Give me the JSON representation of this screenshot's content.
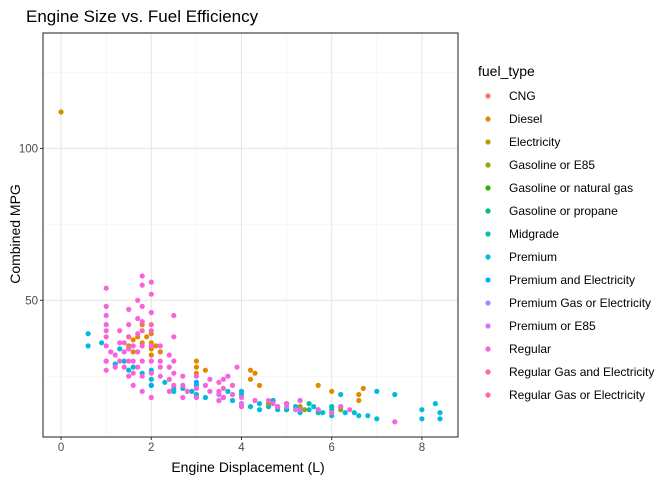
{
  "chart_data": {
    "type": "scatter",
    "title": "Engine Size vs. Fuel Efficiency",
    "xlabel": "Engine Displacement (L)",
    "ylabel": "Combined MPG",
    "xlim": [
      -0.4,
      8.8
    ],
    "ylim": [
      5,
      138
    ],
    "x_ticks": [
      0,
      2,
      4,
      6,
      8
    ],
    "y_ticks": [
      50,
      100
    ],
    "grid": true,
    "legend": {
      "title": "fuel_type",
      "position": "right",
      "entries": [
        {
          "name": "CNG",
          "color": "#F8766D"
        },
        {
          "name": "Diesel",
          "color": "#E18A00"
        },
        {
          "name": "Electricity",
          "color": "#BE9C00"
        },
        {
          "name": "Gasoline or E85",
          "color": "#8CAB00"
        },
        {
          "name": "Gasoline or natural gas",
          "color": "#24B700"
        },
        {
          "name": "Gasoline or propane",
          "color": "#00BE70"
        },
        {
          "name": "Midgrade",
          "color": "#00C1AB"
        },
        {
          "name": "Premium",
          "color": "#00BBDA"
        },
        {
          "name": "Premium and Electricity",
          "color": "#00ACFC"
        },
        {
          "name": "Premium Gas or Electricity",
          "color": "#8B93FF"
        },
        {
          "name": "Premium or E85",
          "color": "#D575FE"
        },
        {
          "name": "Regular",
          "color": "#F962DD"
        },
        {
          "name": "Regular Gas and Electricity",
          "color": "#FF65AC"
        },
        {
          "name": "Regular Gas or Electricity",
          "color": "#FF6C91"
        }
      ]
    },
    "series": [
      {
        "name": "Electricity",
        "color": "#BE9C00",
        "points": [
          [
            0,
            112
          ]
        ]
      },
      {
        "name": "Diesel",
        "color": "#E18A00",
        "points": [
          [
            1.6,
            37
          ],
          [
            1.7,
            38
          ],
          [
            1.8,
            36
          ],
          [
            1.9,
            38
          ],
          [
            2.0,
            36
          ],
          [
            2.0,
            34
          ],
          [
            2.0,
            32
          ],
          [
            1.8,
            42
          ],
          [
            2.0,
            39
          ],
          [
            2.1,
            35
          ],
          [
            2.2,
            33
          ],
          [
            1.5,
            35
          ],
          [
            1.6,
            33
          ],
          [
            3.0,
            30
          ],
          [
            3.0,
            28
          ],
          [
            3.0,
            26
          ],
          [
            3.2,
            27
          ],
          [
            4.2,
            27
          ],
          [
            4.2,
            24
          ],
          [
            4.3,
            26
          ],
          [
            4.4,
            22
          ],
          [
            5.7,
            22
          ],
          [
            6.0,
            20
          ],
          [
            6.6,
            19
          ],
          [
            6.6,
            17
          ],
          [
            6.7,
            21
          ],
          [
            4.7,
            17
          ]
        ]
      },
      {
        "name": "Premium",
        "color": "#00BBDA",
        "points": [
          [
            0.6,
            39
          ],
          [
            0.6,
            35
          ],
          [
            0.9,
            36
          ],
          [
            1.0,
            30
          ],
          [
            1.2,
            29
          ],
          [
            1.3,
            34
          ],
          [
            1.4,
            30
          ],
          [
            1.5,
            27
          ],
          [
            1.6,
            28
          ],
          [
            1.8,
            26
          ],
          [
            2.0,
            27
          ],
          [
            2.0,
            24
          ],
          [
            2.0,
            22
          ],
          [
            2.3,
            23
          ],
          [
            2.5,
            21
          ],
          [
            2.5,
            20
          ],
          [
            2.7,
            21
          ],
          [
            2.9,
            20
          ],
          [
            3.0,
            22
          ],
          [
            3.0,
            19
          ],
          [
            3.2,
            18
          ],
          [
            3.5,
            19
          ],
          [
            3.5,
            17
          ],
          [
            3.6,
            18
          ],
          [
            3.7,
            20
          ],
          [
            3.8,
            17
          ],
          [
            4.0,
            16
          ],
          [
            4.0,
            19
          ],
          [
            4.2,
            15
          ],
          [
            4.4,
            16
          ],
          [
            4.4,
            14
          ],
          [
            4.6,
            15
          ],
          [
            4.7,
            17
          ],
          [
            4.8,
            14
          ],
          [
            5.0,
            16
          ],
          [
            5.0,
            14
          ],
          [
            5.2,
            15
          ],
          [
            5.3,
            13
          ],
          [
            5.5,
            14
          ],
          [
            5.6,
            15
          ],
          [
            5.7,
            14
          ],
          [
            5.8,
            13
          ],
          [
            6.0,
            14
          ],
          [
            6.0,
            12
          ],
          [
            6.2,
            15
          ],
          [
            6.3,
            13
          ],
          [
            6.5,
            13
          ],
          [
            6.6,
            12
          ],
          [
            6.8,
            12
          ],
          [
            7.0,
            11
          ],
          [
            8.0,
            11
          ],
          [
            8.0,
            14
          ],
          [
            8.4,
            13
          ],
          [
            8.4,
            11
          ],
          [
            8.3,
            16
          ],
          [
            7.4,
            19
          ],
          [
            7.0,
            20
          ],
          [
            5.3,
            17
          ],
          [
            6.2,
            19
          ],
          [
            4.0,
            20
          ]
        ]
      },
      {
        "name": "Midgrade",
        "color": "#00C1AB",
        "points": [
          [
            3.0,
            18
          ],
          [
            4.0,
            16
          ],
          [
            5.0,
            14
          ],
          [
            5.5,
            16
          ],
          [
            6.0,
            15
          ],
          [
            5.7,
            13
          ],
          [
            4.8,
            15
          ]
        ]
      },
      {
        "name": "Gasoline or E85",
        "color": "#8CAB00",
        "points": [
          [
            4.6,
            16
          ],
          [
            5.3,
            15
          ],
          [
            5.4,
            14
          ],
          [
            4.8,
            15
          ],
          [
            6.2,
            14
          ]
        ]
      },
      {
        "name": "Premium or E85",
        "color": "#D575FE",
        "points": [
          [
            3.5,
            19
          ],
          [
            4.0,
            16
          ],
          [
            5.0,
            15
          ],
          [
            5.2,
            14
          ]
        ]
      },
      {
        "name": "Regular",
        "color": "#F962DD",
        "points": [
          [
            1.0,
            54
          ],
          [
            1.0,
            48
          ],
          [
            1.0,
            45
          ],
          [
            1.0,
            42
          ],
          [
            1.0,
            40
          ],
          [
            1.0,
            38
          ],
          [
            1.0,
            35
          ],
          [
            1.0,
            30
          ],
          [
            1.0,
            27
          ],
          [
            1.1,
            33
          ],
          [
            1.2,
            28
          ],
          [
            1.2,
            32
          ],
          [
            1.3,
            40
          ],
          [
            1.3,
            30
          ],
          [
            1.4,
            36
          ],
          [
            1.4,
            33
          ],
          [
            1.5,
            47
          ],
          [
            1.5,
            42
          ],
          [
            1.5,
            38
          ],
          [
            1.5,
            34
          ],
          [
            1.5,
            30
          ],
          [
            1.5,
            25
          ],
          [
            1.6,
            35
          ],
          [
            1.6,
            30
          ],
          [
            1.6,
            26
          ],
          [
            1.6,
            22
          ],
          [
            1.7,
            50
          ],
          [
            1.7,
            44
          ],
          [
            1.7,
            39
          ],
          [
            1.7,
            33
          ],
          [
            1.7,
            28
          ],
          [
            1.8,
            58
          ],
          [
            1.8,
            55
          ],
          [
            1.8,
            48
          ],
          [
            1.8,
            43
          ],
          [
            1.8,
            35
          ],
          [
            1.8,
            30
          ],
          [
            1.8,
            25
          ],
          [
            1.8,
            20
          ],
          [
            2.0,
            56
          ],
          [
            2.0,
            52
          ],
          [
            2.0,
            46
          ],
          [
            2.0,
            40
          ],
          [
            2.0,
            35
          ],
          [
            2.0,
            30
          ],
          [
            2.0,
            26
          ],
          [
            2.0,
            22
          ],
          [
            2.0,
            18
          ],
          [
            2.2,
            35
          ],
          [
            2.2,
            30
          ],
          [
            2.2,
            25
          ],
          [
            2.4,
            32
          ],
          [
            2.4,
            28
          ],
          [
            2.4,
            24
          ],
          [
            2.4,
            20
          ],
          [
            2.5,
            45
          ],
          [
            2.5,
            38
          ],
          [
            2.5,
            30
          ],
          [
            2.5,
            26
          ],
          [
            2.5,
            22
          ],
          [
            2.7,
            25
          ],
          [
            2.7,
            22
          ],
          [
            2.7,
            18
          ],
          [
            3.0,
            25
          ],
          [
            3.0,
            21
          ],
          [
            3.0,
            18
          ],
          [
            3.2,
            22
          ],
          [
            3.3,
            24
          ],
          [
            3.3,
            20
          ],
          [
            3.5,
            23
          ],
          [
            3.5,
            20
          ],
          [
            3.5,
            17
          ],
          [
            3.6,
            24
          ],
          [
            3.6,
            21
          ],
          [
            3.6,
            18
          ],
          [
            3.7,
            25
          ],
          [
            3.8,
            22
          ],
          [
            3.8,
            19
          ],
          [
            4.0,
            18
          ],
          [
            4.0,
            15
          ],
          [
            4.3,
            17
          ],
          [
            4.6,
            17
          ],
          [
            4.7,
            16
          ],
          [
            4.8,
            15
          ],
          [
            5.0,
            16
          ],
          [
            5.3,
            14
          ],
          [
            5.3,
            17
          ],
          [
            5.7,
            14
          ],
          [
            6.0,
            13
          ],
          [
            6.2,
            15
          ],
          [
            6.4,
            14
          ],
          [
            7.4,
            10
          ],
          [
            1.3,
            36
          ],
          [
            1.4,
            28
          ],
          [
            2.2,
            28
          ],
          [
            2.8,
            20
          ],
          [
            3.9,
            28
          ]
        ]
      },
      {
        "name": "Regular Gas and Electricity",
        "color": "#FF65AC",
        "points": [
          [
            1.5,
            38
          ],
          [
            1.8,
            40
          ],
          [
            2.0,
            42
          ]
        ]
      },
      {
        "name": "Premium and Electricity",
        "color": "#00ACFC",
        "points": [
          [
            2.0,
            22
          ],
          [
            3.0,
            23
          ]
        ]
      }
    ]
  }
}
